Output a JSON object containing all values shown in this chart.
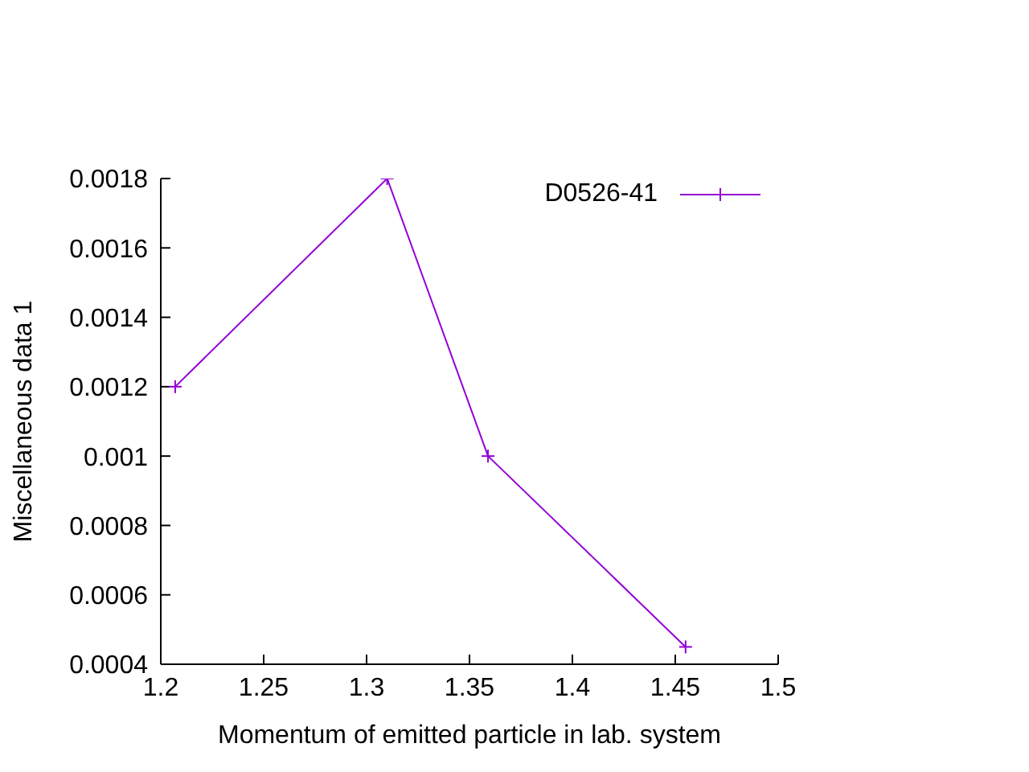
{
  "chart_data": {
    "type": "line",
    "xlabel": "Momentum of emitted particle in lab. system",
    "ylabel": "Miscellaneous data 1",
    "x": [
      1.207,
      1.31,
      1.359,
      1.455
    ],
    "series": [
      {
        "name": "D0526-41",
        "color": "#9400d3",
        "values": [
          0.0012,
          0.0018,
          0.001,
          0.00045
        ]
      }
    ],
    "xlim": [
      1.2,
      1.5
    ],
    "xticks": [
      1.2,
      1.25,
      1.3,
      1.35,
      1.4,
      1.45,
      1.5
    ],
    "ylim": [
      0.0004,
      0.0018
    ],
    "yticks": [
      0.0004,
      0.0006,
      0.0008,
      0.001,
      0.0012,
      0.0014,
      0.0016,
      0.0018
    ],
    "grid": false,
    "legend": "top right",
    "marker": "cross",
    "line_style": "solid"
  }
}
